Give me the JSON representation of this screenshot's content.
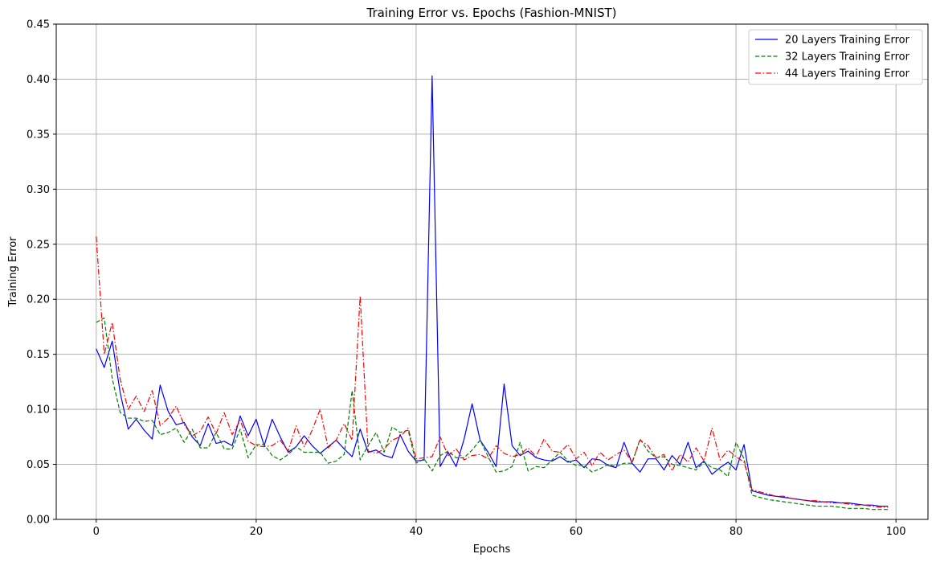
{
  "chart_data": {
    "type": "line",
    "title": "Training Error vs. Epochs (Fashion-MNIST)",
    "xlabel": "Epochs",
    "ylabel": "Training Error",
    "xlim": [
      -5,
      104
    ],
    "ylim": [
      0,
      0.45
    ],
    "xticks": [
      0,
      20,
      40,
      60,
      80,
      100
    ],
    "yticks": [
      0.0,
      0.05,
      0.1,
      0.15,
      0.2,
      0.25,
      0.3,
      0.35,
      0.4,
      0.45
    ],
    "grid": true,
    "legend_position": "top-right",
    "x": [
      0,
      1,
      2,
      3,
      4,
      5,
      6,
      7,
      8,
      9,
      10,
      11,
      12,
      13,
      14,
      15,
      16,
      17,
      18,
      19,
      20,
      21,
      22,
      23,
      24,
      25,
      26,
      27,
      28,
      29,
      30,
      31,
      32,
      33,
      34,
      35,
      36,
      37,
      38,
      39,
      40,
      41,
      42,
      43,
      44,
      45,
      46,
      47,
      48,
      49,
      50,
      51,
      52,
      53,
      54,
      55,
      56,
      57,
      58,
      59,
      60,
      61,
      62,
      63,
      64,
      65,
      66,
      67,
      68,
      69,
      70,
      71,
      72,
      73,
      74,
      75,
      76,
      77,
      78,
      79,
      80,
      81,
      82,
      83,
      84,
      85,
      86,
      87,
      88,
      89,
      90,
      91,
      92,
      93,
      94,
      95,
      96,
      97,
      98,
      99
    ],
    "series": [
      {
        "name": "20 Layers Training Error",
        "color": "#0000ff",
        "style": "solid",
        "values": [
          0.155,
          0.138,
          0.162,
          0.115,
          0.082,
          0.091,
          0.081,
          0.073,
          0.122,
          0.098,
          0.086,
          0.088,
          0.075,
          0.067,
          0.087,
          0.069,
          0.071,
          0.067,
          0.094,
          0.076,
          0.091,
          0.067,
          0.091,
          0.075,
          0.061,
          0.066,
          0.076,
          0.067,
          0.06,
          0.066,
          0.072,
          0.064,
          0.057,
          0.082,
          0.061,
          0.063,
          0.058,
          0.056,
          0.077,
          0.062,
          0.053,
          0.054,
          0.403,
          0.048,
          0.061,
          0.048,
          0.073,
          0.105,
          0.072,
          0.061,
          0.048,
          0.123,
          0.067,
          0.058,
          0.062,
          0.056,
          0.054,
          0.053,
          0.057,
          0.052,
          0.054,
          0.047,
          0.055,
          0.054,
          0.049,
          0.047,
          0.07,
          0.051,
          0.043,
          0.055,
          0.055,
          0.045,
          0.058,
          0.05,
          0.07,
          0.047,
          0.053,
          0.041,
          0.047,
          0.052,
          0.045,
          0.068,
          0.026,
          0.024,
          0.022,
          0.021,
          0.02,
          0.019,
          0.018,
          0.017,
          0.016,
          0.016,
          0.016,
          0.015,
          0.015,
          0.014,
          0.013,
          0.013,
          0.012,
          0.012
        ]
      },
      {
        "name": "32 Layers Training Error",
        "color": "#008000",
        "style": "dashed",
        "values": [
          0.179,
          0.183,
          0.128,
          0.097,
          0.092,
          0.092,
          0.089,
          0.09,
          0.077,
          0.079,
          0.083,
          0.07,
          0.082,
          0.065,
          0.065,
          0.079,
          0.064,
          0.064,
          0.082,
          0.056,
          0.068,
          0.068,
          0.058,
          0.054,
          0.059,
          0.066,
          0.061,
          0.061,
          0.061,
          0.051,
          0.053,
          0.059,
          0.117,
          0.054,
          0.067,
          0.079,
          0.061,
          0.084,
          0.079,
          0.081,
          0.051,
          0.055,
          0.044,
          0.058,
          0.062,
          0.056,
          0.056,
          0.063,
          0.072,
          0.057,
          0.043,
          0.044,
          0.048,
          0.07,
          0.044,
          0.048,
          0.047,
          0.054,
          0.061,
          0.053,
          0.049,
          0.049,
          0.043,
          0.046,
          0.05,
          0.048,
          0.051,
          0.051,
          0.073,
          0.062,
          0.056,
          0.057,
          0.05,
          0.049,
          0.047,
          0.045,
          0.052,
          0.047,
          0.045,
          0.039,
          0.07,
          0.055,
          0.022,
          0.02,
          0.018,
          0.017,
          0.016,
          0.015,
          0.014,
          0.013,
          0.012,
          0.012,
          0.012,
          0.011,
          0.01,
          0.01,
          0.01,
          0.009,
          0.009,
          0.009
        ]
      },
      {
        "name": "44 Layers Training Error",
        "color": "#ff0000",
        "style": "dashdot",
        "values": [
          0.257,
          0.15,
          0.179,
          0.127,
          0.1,
          0.112,
          0.098,
          0.117,
          0.085,
          0.092,
          0.103,
          0.086,
          0.076,
          0.08,
          0.093,
          0.078,
          0.097,
          0.077,
          0.09,
          0.071,
          0.067,
          0.066,
          0.067,
          0.072,
          0.062,
          0.085,
          0.066,
          0.081,
          0.1,
          0.065,
          0.072,
          0.087,
          0.072,
          0.203,
          0.062,
          0.06,
          0.064,
          0.072,
          0.075,
          0.083,
          0.055,
          0.056,
          0.057,
          0.075,
          0.058,
          0.064,
          0.054,
          0.058,
          0.059,
          0.055,
          0.067,
          0.06,
          0.057,
          0.059,
          0.065,
          0.057,
          0.073,
          0.062,
          0.061,
          0.068,
          0.055,
          0.061,
          0.049,
          0.061,
          0.054,
          0.059,
          0.063,
          0.052,
          0.072,
          0.067,
          0.056,
          0.059,
          0.044,
          0.059,
          0.052,
          0.065,
          0.053,
          0.083,
          0.054,
          0.063,
          0.057,
          0.052,
          0.027,
          0.025,
          0.023,
          0.021,
          0.021,
          0.019,
          0.018,
          0.017,
          0.017,
          0.016,
          0.015,
          0.015,
          0.014,
          0.013,
          0.013,
          0.012,
          0.011,
          0.011
        ]
      }
    ]
  }
}
